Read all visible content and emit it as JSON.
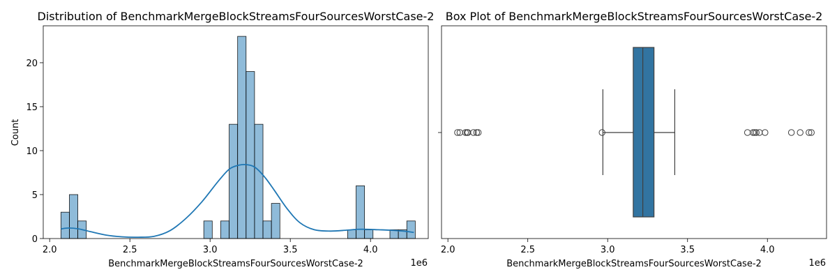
{
  "chart_data": [
    {
      "type": "histogram",
      "title": "Distribution of BenchmarkMergeBlockStreamsFourSourcesWorstCase-2",
      "xlabel": "BenchmarkMergeBlockStreamsFourSourcesWorstCase-2",
      "ylabel": "Count",
      "x_offset_label": "1e6",
      "xlim": [
        1.96,
        4.36
      ],
      "ylim": [
        0,
        24.2
      ],
      "xticks": [
        2.0,
        2.5,
        3.0,
        3.5,
        4.0
      ],
      "xtick_labels": [
        "2.0",
        "2.5",
        "3.0",
        "3.5",
        "4.0"
      ],
      "yticks": [
        0,
        5,
        10,
        15,
        20
      ],
      "ytick_labels": [
        "0",
        "5",
        "10",
        "15",
        "20"
      ],
      "bar_color": "#1f77b4",
      "bins": [
        {
          "x0": 2.0702,
          "x1": 2.1229,
          "count": 3
        },
        {
          "x0": 2.1229,
          "x1": 2.1756,
          "count": 5
        },
        {
          "x0": 2.1756,
          "x1": 2.2283,
          "count": 2
        },
        {
          "x0": 2.9608,
          "x1": 3.0135,
          "count": 2
        },
        {
          "x0": 3.0662,
          "x1": 3.1189,
          "count": 2
        },
        {
          "x0": 3.1189,
          "x1": 3.1716,
          "count": 13
        },
        {
          "x0": 3.1716,
          "x1": 3.2243,
          "count": 23
        },
        {
          "x0": 3.2243,
          "x1": 3.277,
          "count": 19
        },
        {
          "x0": 3.277,
          "x1": 3.3297,
          "count": 13
        },
        {
          "x0": 3.3297,
          "x1": 3.3824,
          "count": 2
        },
        {
          "x0": 3.3824,
          "x1": 3.4351,
          "count": 4
        },
        {
          "x0": 3.8574,
          "x1": 3.9101,
          "count": 1
        },
        {
          "x0": 3.9101,
          "x1": 3.9628,
          "count": 6
        },
        {
          "x0": 3.9628,
          "x1": 4.0155,
          "count": 1
        },
        {
          "x0": 4.1209,
          "x1": 4.1736,
          "count": 1
        },
        {
          "x0": 4.1736,
          "x1": 4.2263,
          "count": 1
        },
        {
          "x0": 4.2263,
          "x1": 4.279,
          "count": 2
        }
      ],
      "kde": {
        "x": [
          2.07,
          2.12,
          2.18,
          2.25,
          2.35,
          2.45,
          2.55,
          2.65,
          2.75,
          2.85,
          2.95,
          3.05,
          3.12,
          3.18,
          3.23,
          3.28,
          3.34,
          3.4,
          3.48,
          3.56,
          3.65,
          3.75,
          3.85,
          3.92,
          3.98,
          4.05,
          4.12,
          4.2,
          4.27
        ],
        "y": [
          1.1,
          1.2,
          1.1,
          0.8,
          0.4,
          0.2,
          0.15,
          0.25,
          0.9,
          2.3,
          4.2,
          6.5,
          7.9,
          8.35,
          8.4,
          8.1,
          7.0,
          5.5,
          3.4,
          1.8,
          1.0,
          0.85,
          0.95,
          1.05,
          1.05,
          1.0,
          0.95,
          0.85,
          0.7
        ]
      }
    },
    {
      "type": "box",
      "title": "Box Plot of BenchmarkMergeBlockStreamsFourSourcesWorstCase-2",
      "xlabel": "BenchmarkMergeBlockStreamsFourSourcesWorstCase-2",
      "x_offset_label": "1e6",
      "xlim": [
        1.96,
        4.37
      ],
      "xticks": [
        2.0,
        2.5,
        3.0,
        3.5,
        4.0
      ],
      "xtick_labels": [
        "2.0",
        "2.5",
        "3.0",
        "3.5",
        "4.0"
      ],
      "box_color": "#3274a1",
      "q1": 3.16,
      "median": 3.22,
      "q3": 3.29,
      "whisker_low": 2.97,
      "whisker_high": 3.42,
      "fliers": [
        2.06,
        2.075,
        2.11,
        2.12,
        2.125,
        2.16,
        2.18,
        2.19,
        2.965,
        3.875,
        3.91,
        3.92,
        3.93,
        3.95,
        3.985,
        4.15,
        4.205,
        4.26,
        4.275
      ]
    }
  ]
}
